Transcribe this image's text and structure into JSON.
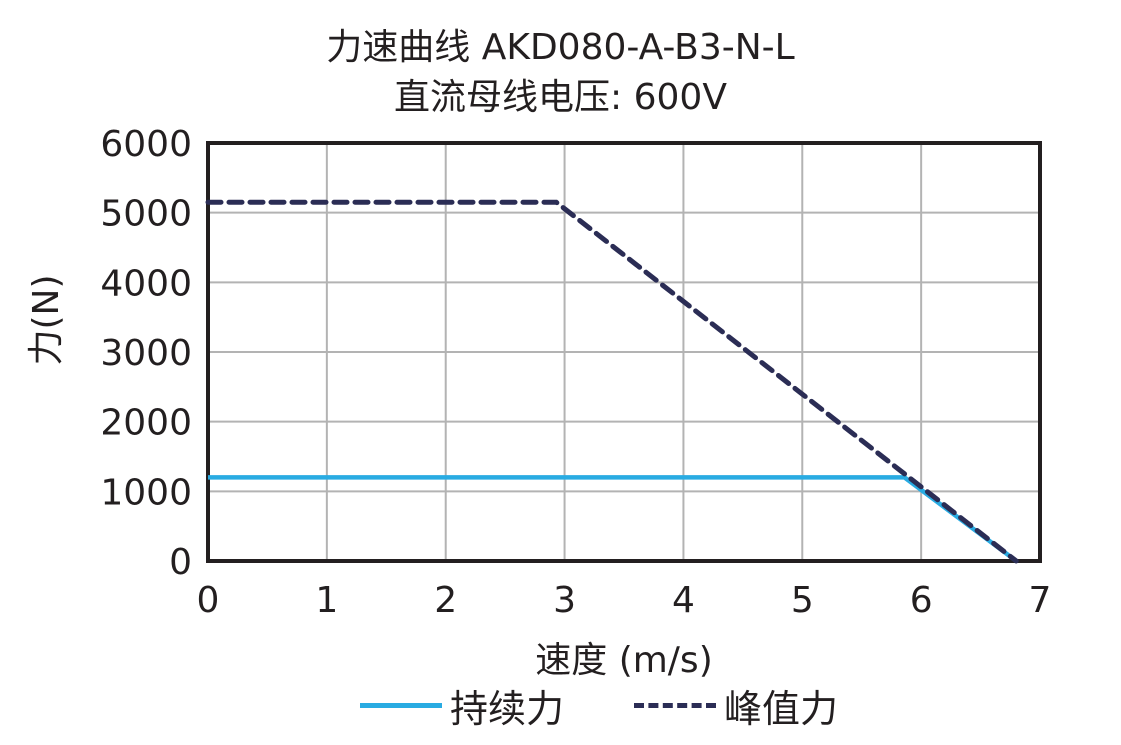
{
  "chart_data": {
    "type": "line",
    "title": "力速曲线 AKD080-A-B3-N-L",
    "subtitle": "直流母线电压: 600V",
    "xlabel": "速度 (m/s)",
    "ylabel": "力(N)",
    "xlim": [
      0,
      7
    ],
    "ylim": [
      0,
      6000
    ],
    "x_ticks": [
      "0",
      "1",
      "2",
      "3",
      "4",
      "5",
      "6",
      "7"
    ],
    "y_ticks": [
      "0",
      "1000",
      "2000",
      "3000",
      "4000",
      "5000",
      "6000"
    ],
    "grid": true,
    "legend_position": "bottom",
    "series": [
      {
        "name": "持续力",
        "style": "solid",
        "color": "#29abe2",
        "points": [
          [
            0,
            1200
          ],
          [
            5.86,
            1200
          ],
          [
            6.8,
            0
          ]
        ]
      },
      {
        "name": "峰值力",
        "style": "dashed",
        "color": "#2b2d55",
        "points": [
          [
            0,
            5150
          ],
          [
            2.93,
            5150
          ],
          [
            6.8,
            0
          ]
        ]
      }
    ]
  }
}
